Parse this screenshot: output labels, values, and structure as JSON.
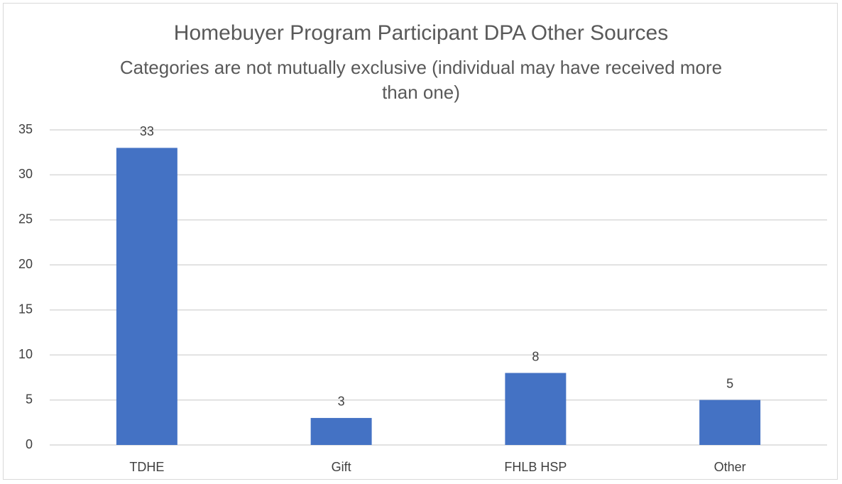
{
  "chart_data": {
    "type": "bar",
    "title": "Homebuyer Program Participant DPA Other Sources",
    "subtitle": "Categories are not mutually exclusive (individual may have received more than one)",
    "categories": [
      "TDHE",
      "Gift",
      "FHLB HSP",
      "Other"
    ],
    "values": [
      33,
      3,
      8,
      5
    ],
    "color": "#4472c4",
    "ylim": [
      0,
      35
    ],
    "yticks": [
      0,
      5,
      10,
      15,
      20,
      25,
      30,
      35
    ],
    "grid": true
  }
}
